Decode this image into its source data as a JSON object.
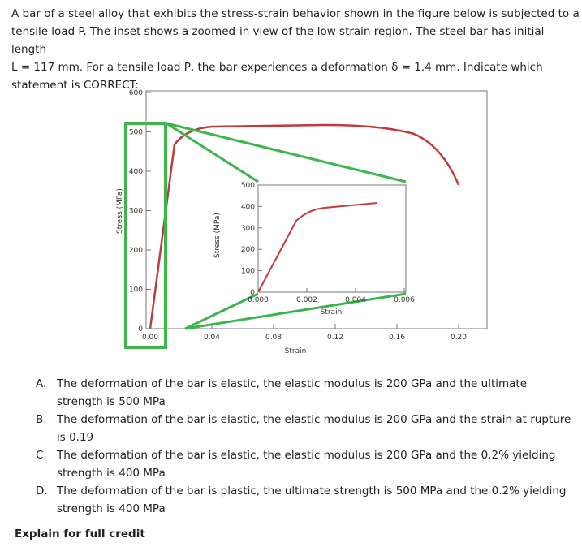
{
  "question": {
    "lines": [
      "A bar of a steel alloy that exhibits the stress-strain behavior shown in the figure below is subjected to a",
      "tensile load P. The inset shows a zoomed-in view of the low strain region. The steel bar has initial length",
      "L = 117 mm. For a tensile load P, the bar experiences a deformation δ = 1.4 mm. Indicate which",
      "statement is CORRECT:"
    ]
  },
  "figure": {
    "main": {
      "y_label": "Stress (MPa)",
      "x_label": "Strain",
      "y_ticks": [
        "600",
        "500",
        "400",
        "300",
        "200",
        "100",
        "0"
      ],
      "x_ticks": [
        "0.00",
        "0.04",
        "0.08",
        "0.12",
        "0.16",
        "0.20"
      ]
    },
    "inset": {
      "y_label": "Stress (MPa)",
      "x_label": "Strain",
      "y_ticks": [
        "500",
        "400",
        "300",
        "200",
        "100",
        "0"
      ],
      "x_ticks": [
        "0.000",
        "0.002",
        "0.004",
        "0.006"
      ]
    }
  },
  "options": [
    {
      "letter": "A.",
      "text": "The deformation of the bar is elastic, the elastic modulus is 200 GPa and the ultimate strength is 500 MPa"
    },
    {
      "letter": "B.",
      "text": "The deformation of the bar is elastic, the elastic modulus is 200 GPa and the strain at rupture is 0.19"
    },
    {
      "letter": "C.",
      "text": "The deformation of the bar is elastic, the elastic modulus is 200 GPa and the 0.2% yielding strength is 400 MPa"
    },
    {
      "letter": "D.",
      "text": "The deformation of the bar is plastic, the ultimate strength is 500 MPa and the 0.2% yielding strength is 400 MPa"
    }
  ],
  "footer": "Explain for full credit"
}
